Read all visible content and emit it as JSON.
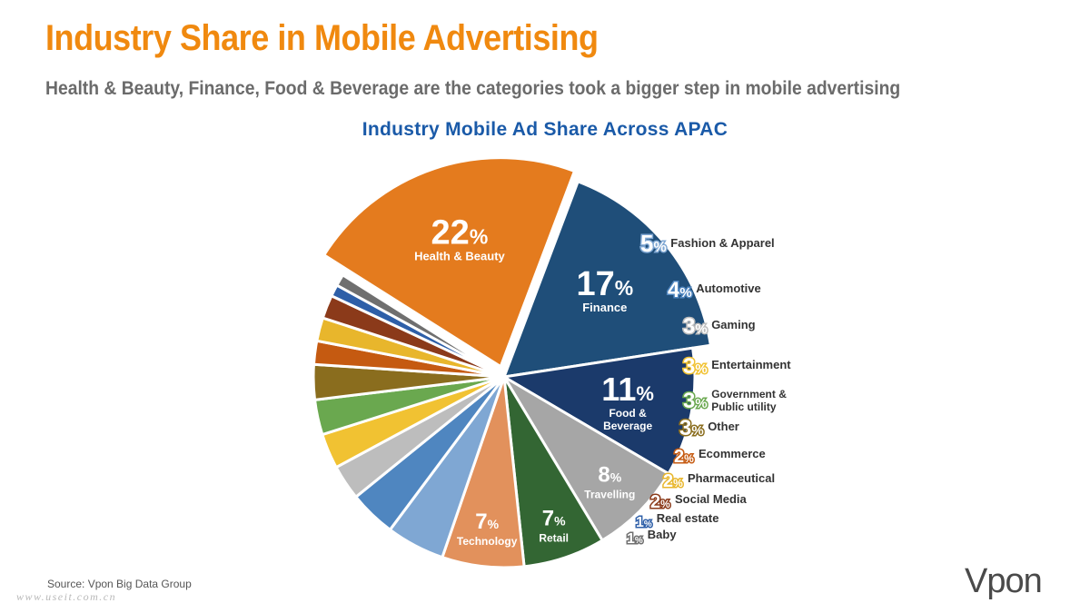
{
  "header": {
    "title": "Industry Share in Mobile Advertising",
    "subtitle": "Health & Beauty, Finance, Food & Beverage are the categories took a bigger step in mobile advertising"
  },
  "footer": {
    "source": "Source: Vpon Big Data Group",
    "watermark": "www.useit.com.cn",
    "brand": "Vpon"
  },
  "chart_data": {
    "type": "pie",
    "title": "Industry Mobile Ad Share Across APAC",
    "unit": "%",
    "slices": [
      {
        "label": "Health & Beauty",
        "value": 22,
        "color": "#e47b1e",
        "label_position": "inside"
      },
      {
        "label": "Finance",
        "value": 17,
        "color": "#1f4e79",
        "label_position": "inside"
      },
      {
        "label": "Food & Beverage",
        "value": 11,
        "color": "#1b3a6b",
        "label_position": "inside"
      },
      {
        "label": "Travelling",
        "value": 8,
        "color": "#a6a6a6",
        "label_position": "inside"
      },
      {
        "label": "Retail",
        "value": 7,
        "color": "#336633",
        "label_position": "inside"
      },
      {
        "label": "Technology",
        "value": 7,
        "color": "#e2915c",
        "label_position": "inside"
      },
      {
        "label": "Fashion & Apparel",
        "value": 5,
        "color": "#7fa7d3",
        "label_position": "outside"
      },
      {
        "label": "Automotive",
        "value": 4,
        "color": "#4f86c0",
        "label_position": "outside"
      },
      {
        "label": "Gaming",
        "value": 3,
        "color": "#bdbdbd",
        "label_position": "outside"
      },
      {
        "label": "Entertainment",
        "value": 3,
        "color": "#f1c232",
        "label_position": "outside"
      },
      {
        "label": "Government & Public utility",
        "value": 3,
        "color": "#6aa84f",
        "label_position": "outside"
      },
      {
        "label": "Other",
        "value": 3,
        "color": "#8a6d1e",
        "label_position": "outside"
      },
      {
        "label": "Ecommerce",
        "value": 2,
        "color": "#c55a11",
        "label_position": "outside"
      },
      {
        "label": "Pharmaceutical",
        "value": 2,
        "color": "#e8b62c",
        "label_position": "outside"
      },
      {
        "label": "Social Media",
        "value": 2,
        "color": "#8b3a1a",
        "label_position": "outside"
      },
      {
        "label": "Real estate",
        "value": 1,
        "color": "#2e5fa8",
        "label_position": "outside"
      },
      {
        "label": "Baby",
        "value": 1,
        "color": "#6f6f6f",
        "label_position": "outside"
      }
    ]
  }
}
